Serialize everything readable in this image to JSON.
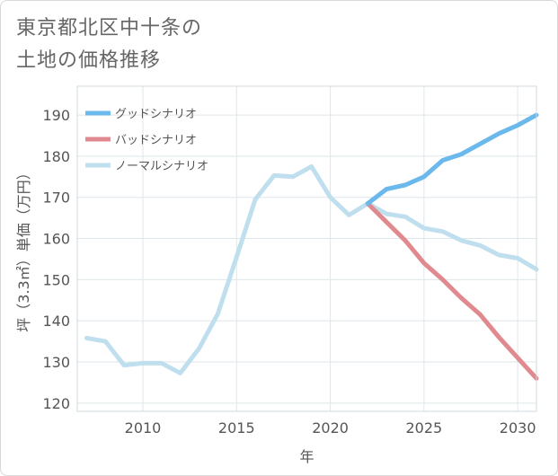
{
  "title_lines": [
    "東京都北区中十条の",
    "土地の価格推移"
  ],
  "chart_data": {
    "type": "line",
    "title": "東京都北区中十条の土地の価格推移",
    "xlabel": "年",
    "ylabel": "坪（3.3㎡）単価（万円）",
    "xlim": [
      2006.5,
      2031
    ],
    "ylim": [
      118,
      197
    ],
    "x_ticks": [
      2010,
      2015,
      2020,
      2025,
      2030
    ],
    "y_ticks": [
      120,
      130,
      140,
      150,
      160,
      170,
      180,
      190
    ],
    "grid": true,
    "legend_position": "top-left",
    "series": [
      {
        "name": "グッドシナリオ",
        "color": "#6bb8ec",
        "x": [
          2022,
          2023,
          2024,
          2025,
          2026,
          2027,
          2028,
          2029,
          2030,
          2031
        ],
        "y": [
          168.5,
          172,
          173,
          175,
          179,
          180.5,
          183,
          185.5,
          187.5,
          190
        ]
      },
      {
        "name": "バッドシナリオ",
        "color": "#e08a90",
        "x": [
          2022,
          2023,
          2024,
          2025,
          2026,
          2027,
          2028,
          2029,
          2030,
          2031
        ],
        "y": [
          168.5,
          164,
          159.5,
          154,
          150,
          145.5,
          141.5,
          136,
          131,
          126
        ]
      },
      {
        "name": "ノーマルシナリオ",
        "color": "#c0dfee",
        "x": [
          2007,
          2008,
          2009,
          2010,
          2011,
          2012,
          2013,
          2014,
          2015,
          2016,
          2017,
          2018,
          2019,
          2020,
          2021,
          2022,
          2023,
          2024,
          2025,
          2026,
          2027,
          2028,
          2029,
          2030,
          2031
        ],
        "y": [
          135.8,
          135,
          129.2,
          129.7,
          129.7,
          127.3,
          133.3,
          141.7,
          155.5,
          169.5,
          175.3,
          175,
          177.5,
          170,
          165.7,
          168.5,
          166,
          165.3,
          162.5,
          161.7,
          159.5,
          158.3,
          156,
          155.2,
          152.5
        ]
      }
    ]
  }
}
